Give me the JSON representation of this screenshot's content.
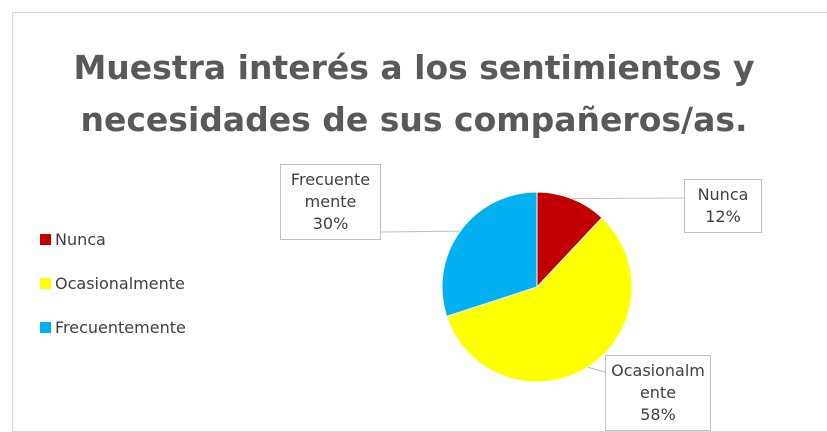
{
  "chart_data": {
    "type": "pie",
    "title": "Muestra interés a los sentimientos y necesidades de sus compañeros/as.",
    "categories": [
      "Nunca",
      "Ocasionalmente",
      "Frecuentemente"
    ],
    "values": [
      12,
      58,
      30
    ],
    "value_labels": [
      "12%",
      "58%",
      "30%"
    ],
    "colors": [
      "#c00000",
      "#ffff00",
      "#00b0f0"
    ],
    "legend": "left"
  }
}
